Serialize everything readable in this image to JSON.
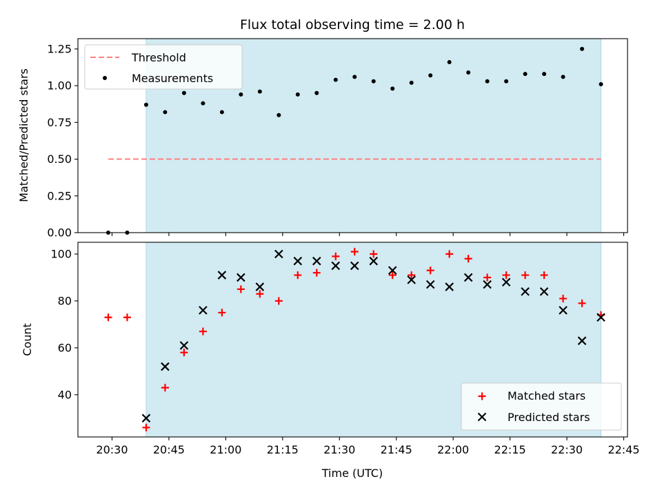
{
  "chart_data": [
    {
      "type": "scatter",
      "title": "Flux total observing time = 2.00 h",
      "ylabel": "Matched/Predicted stars",
      "xlabel": "",
      "xlim": [
        "20:21",
        "22:46"
      ],
      "ylim": [
        0,
        1.32
      ],
      "yticks": [
        0.0,
        0.25,
        0.5,
        0.75,
        1.0,
        1.25
      ],
      "ytick_labels": [
        "0.00",
        "0.25",
        "0.50",
        "0.75",
        "1.00",
        "1.25"
      ],
      "shaded_span": [
        "20:39",
        "22:39"
      ],
      "shade_color": "#add8e6",
      "legend_position": "top-left",
      "threshold": {
        "name": "Threshold",
        "value": 0.5,
        "x_start": "20:29",
        "x_end": "22:39",
        "color": "#ff7f7f"
      },
      "series": [
        {
          "name": "Measurements",
          "color": "#000000",
          "marker": "dot",
          "x": [
            "20:29",
            "20:34",
            "20:39",
            "20:44",
            "20:49",
            "20:54",
            "20:59",
            "21:04",
            "21:09",
            "21:14",
            "21:19",
            "21:24",
            "21:29",
            "21:34",
            "21:39",
            "21:44",
            "21:49",
            "21:54",
            "21:59",
            "22:04",
            "22:09",
            "22:14",
            "22:19",
            "22:24",
            "22:29",
            "22:34",
            "22:39"
          ],
          "y": [
            0.0,
            0.0,
            0.87,
            0.82,
            0.95,
            0.88,
            0.82,
            0.94,
            0.96,
            0.8,
            0.94,
            0.95,
            1.04,
            1.06,
            1.03,
            0.98,
            1.02,
            1.07,
            1.16,
            1.09,
            1.03,
            1.03,
            1.08,
            1.08,
            1.06,
            1.25,
            1.01
          ]
        }
      ]
    },
    {
      "type": "scatter",
      "title": "",
      "ylabel": "Count",
      "xlabel": "Time (UTC)",
      "xlim": [
        "20:21",
        "22:46"
      ],
      "ylim": [
        22,
        105
      ],
      "yticks": [
        40,
        60,
        80,
        100
      ],
      "ytick_labels": [
        "40",
        "60",
        "80",
        "100"
      ],
      "xticks": [
        "20:30",
        "20:45",
        "21:00",
        "21:15",
        "21:30",
        "21:45",
        "22:00",
        "22:15",
        "22:30",
        "22:45"
      ],
      "xtick_labels": [
        "20:30",
        "20:45",
        "21:00",
        "21:15",
        "21:30",
        "21:45",
        "22:00",
        "22:15",
        "22:30",
        "22:45"
      ],
      "shaded_span": [
        "20:39",
        "22:39"
      ],
      "shade_color": "#add8e6",
      "legend_position": "bottom-right",
      "series": [
        {
          "name": "Matched stars",
          "color": "#ff0000",
          "marker": "plus",
          "x": [
            "20:29",
            "20:34",
            "20:39",
            "20:44",
            "20:49",
            "20:54",
            "20:59",
            "21:04",
            "21:09",
            "21:14",
            "21:19",
            "21:24",
            "21:29",
            "21:34",
            "21:39",
            "21:44",
            "21:49",
            "21:54",
            "21:59",
            "22:04",
            "22:09",
            "22:14",
            "22:19",
            "22:24",
            "22:29",
            "22:34",
            "22:39"
          ],
          "y": [
            73,
            73,
            26,
            43,
            58,
            67,
            75,
            85,
            83,
            80,
            91,
            92,
            99,
            101,
            100,
            91,
            91,
            93,
            100,
            98,
            90,
            91,
            91,
            91,
            81,
            79,
            74
          ]
        },
        {
          "name": "Predicted stars",
          "color": "#000000",
          "marker": "x",
          "x": [
            "20:39",
            "20:44",
            "20:49",
            "20:54",
            "20:59",
            "21:04",
            "21:09",
            "21:14",
            "21:19",
            "21:24",
            "21:29",
            "21:34",
            "21:39",
            "21:44",
            "21:49",
            "21:54",
            "21:59",
            "22:04",
            "22:09",
            "22:14",
            "22:19",
            "22:24",
            "22:29",
            "22:34",
            "22:39"
          ],
          "y": [
            30,
            52,
            61,
            76,
            91,
            90,
            86,
            100,
            97,
            97,
            95,
            95,
            97,
            93,
            89,
            87,
            86,
            90,
            87,
            88,
            84,
            84,
            76,
            63,
            73
          ]
        }
      ]
    }
  ]
}
